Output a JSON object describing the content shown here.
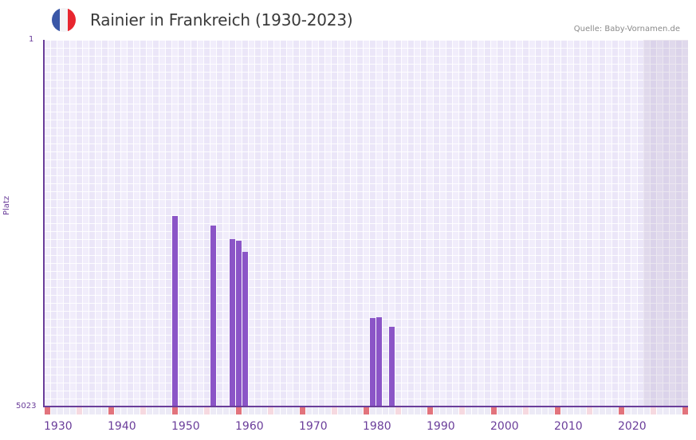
{
  "header": {
    "title": "Rainier in Frankreich (1930-2023)",
    "source": "Quelle: Baby-Vornamen.de",
    "flag": {
      "icon": "france-flag-icon",
      "colors": [
        "#3a57a7",
        "#f4f4f6",
        "#e8262f"
      ]
    }
  },
  "axis": {
    "y_title": "Platz",
    "y_top_label": "1",
    "y_bottom_label": "5023",
    "x_labels": [
      "1930",
      "1940",
      "1950",
      "1960",
      "1970",
      "1980",
      "1990",
      "2000",
      "2010",
      "2020"
    ]
  },
  "colors": {
    "bar": "#8b55c7",
    "axis": "#6a3d9a",
    "decade_marker": "#e2737c",
    "half_decade_marker": "#f6d9e0"
  },
  "chart_data": {
    "type": "bar",
    "title": "Rainier in Frankreich (1930-2023)",
    "xlabel": "",
    "ylabel": "Platz",
    "y_inverted": true,
    "ylim": [
      1,
      5023
    ],
    "xlim": [
      1930,
      2030
    ],
    "shaded_future_from": 2024,
    "grid": true,
    "legend": null,
    "source": "Quelle: Baby-Vornamen.de",
    "x": [
      1950,
      1956,
      1959,
      1960,
      1961,
      1981,
      1982,
      1984
    ],
    "values": [
      2414,
      2544,
      2729,
      2751,
      2904,
      3810,
      3799,
      3930
    ]
  }
}
